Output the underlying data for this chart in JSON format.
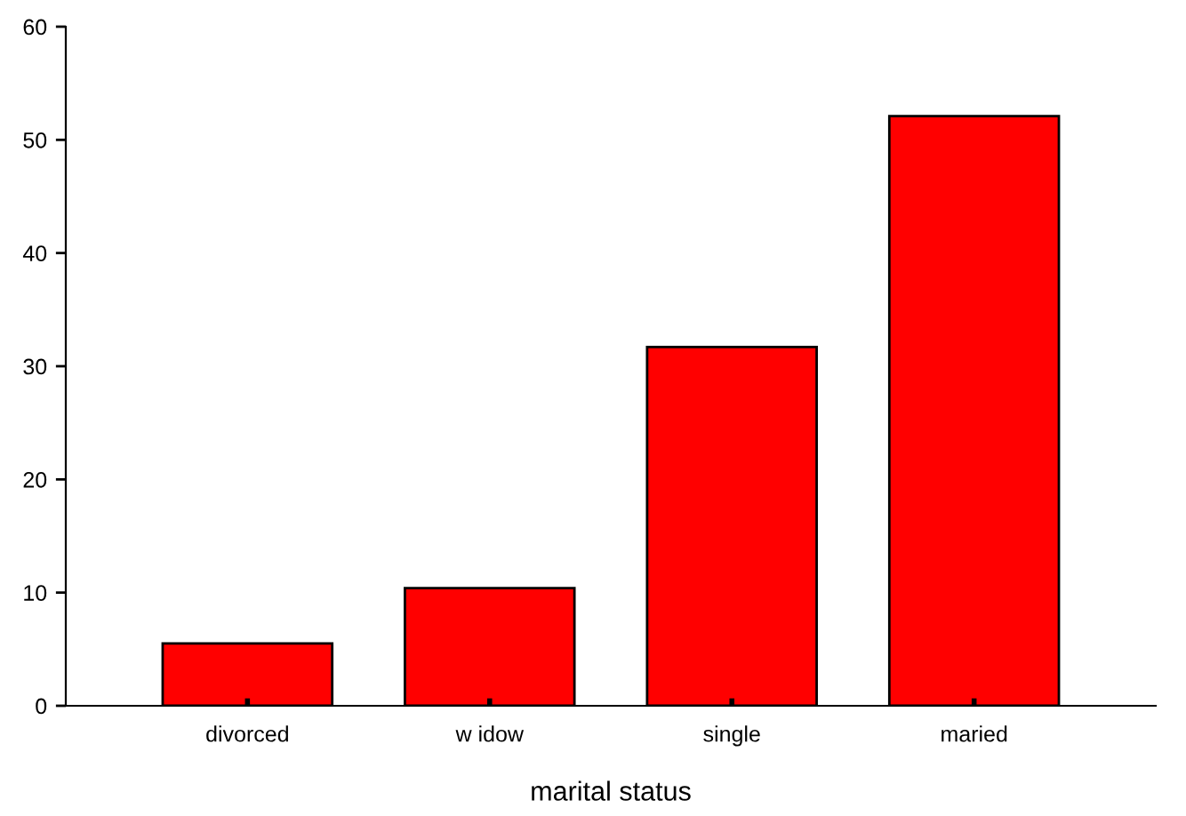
{
  "chart_data": {
    "type": "bar",
    "xlabel": "marital status",
    "categories": [
      "divorced",
      "w idow",
      "single",
      "maried"
    ],
    "values": [
      5.5,
      10.4,
      31.7,
      52.1
    ],
    "color": "#ff0000",
    "ylim": [
      0,
      60
    ],
    "yticks": [
      0,
      10,
      20,
      30,
      40,
      50,
      60
    ],
    "grid": false
  }
}
